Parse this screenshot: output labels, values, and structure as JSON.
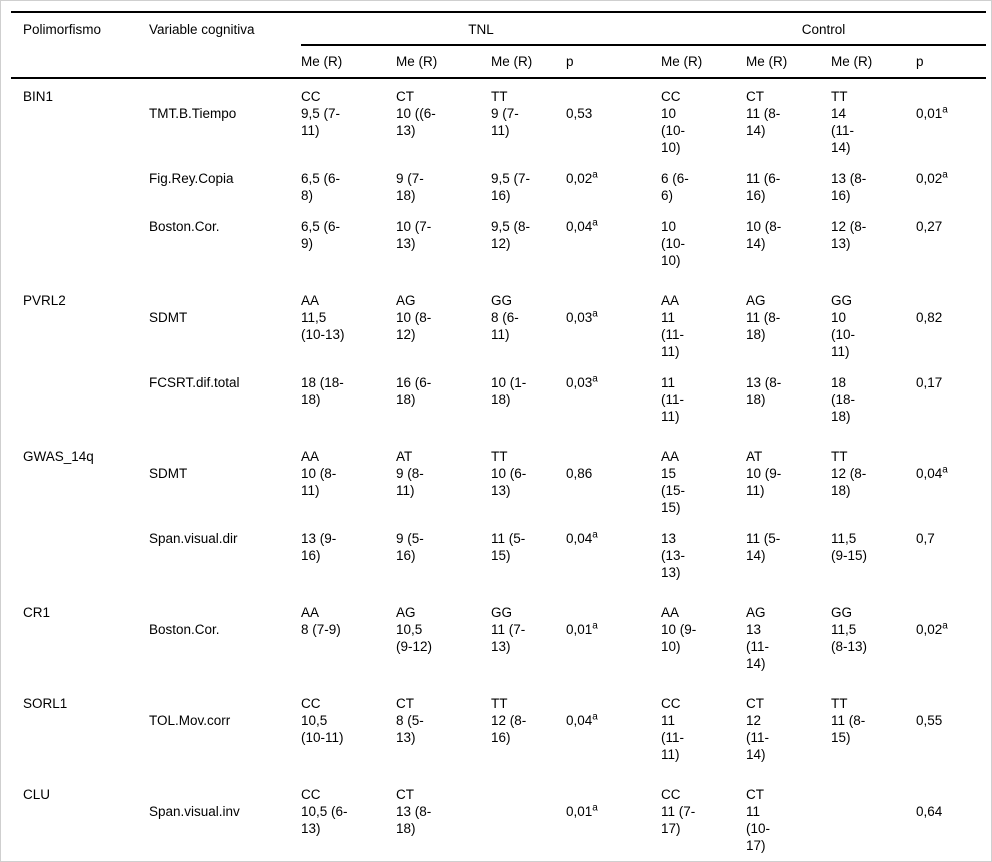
{
  "header": {
    "col_polimorfismo": "Polimorfismo",
    "col_variable": "Variable cognitiva",
    "group_tnl": "TNL",
    "group_control": "Control",
    "sub_me": "Me (R)",
    "sub_p": "p"
  },
  "sections": [
    {
      "gene": "BIN1",
      "genotypes_tnl": [
        "CC",
        "CT",
        "TT"
      ],
      "genotypes_control": [
        "CC",
        "CT",
        "TT"
      ],
      "rows": [
        {
          "variable": "TMT.B.Tiempo",
          "tnl": [
            "9,5 (7-\n11)",
            "10 ((6-\n13)",
            "9 (7-\n11)"
          ],
          "tnl_p": "0,53",
          "tnl_p_sup": "",
          "control": [
            "10\n(10-\n10)",
            "11 (8-\n14)",
            "14\n(11-\n14)"
          ],
          "control_p": "0,01",
          "control_p_sup": "a"
        },
        {
          "variable": "Fig.Rey.Copia",
          "tnl": [
            "6,5 (6-\n8)",
            "9 (7-\n18)",
            "9,5 (7-\n16)"
          ],
          "tnl_p": "0,02",
          "tnl_p_sup": "a",
          "control": [
            "6 (6-\n6)",
            "11 (6-\n16)",
            "13 (8-\n16)"
          ],
          "control_p": "0,02",
          "control_p_sup": "a"
        },
        {
          "variable": "Boston.Cor.",
          "tnl": [
            "6,5 (6-\n9)",
            "10 (7-\n13)",
            "9,5 (8-\n12)"
          ],
          "tnl_p": "0,04",
          "tnl_p_sup": "a",
          "control": [
            "10\n(10-\n10)",
            "10 (8-\n14)",
            "12 (8-\n13)"
          ],
          "control_p": "0,27",
          "control_p_sup": ""
        }
      ]
    },
    {
      "gene": "PVRL2",
      "genotypes_tnl": [
        "AA",
        "AG",
        "GG"
      ],
      "genotypes_control": [
        "AA",
        "AG",
        "GG"
      ],
      "rows": [
        {
          "variable": "SDMT",
          "tnl": [
            "11,5\n(10-13)",
            "10 (8-\n12)",
            "8 (6-\n11)"
          ],
          "tnl_p": "0,03",
          "tnl_p_sup": "a",
          "control": [
            "11\n(11-\n11)",
            "11 (8-\n18)",
            "10\n(10-\n11)"
          ],
          "control_p": "0,82",
          "control_p_sup": ""
        },
        {
          "variable": "FCSRT.dif.total",
          "tnl": [
            "18 (18-\n18)",
            "16 (6-\n18)",
            "10 (1-\n18)"
          ],
          "tnl_p": "0,03",
          "tnl_p_sup": "a",
          "control": [
            "11\n(11-\n11)",
            "13 (8-\n18)",
            "18\n(18-\n18)"
          ],
          "control_p": "0,17",
          "control_p_sup": ""
        }
      ]
    },
    {
      "gene": "GWAS_14q",
      "genotypes_tnl": [
        "AA",
        "AT",
        "TT"
      ],
      "genotypes_control": [
        "AA",
        "AT",
        "TT"
      ],
      "rows": [
        {
          "variable": "SDMT",
          "tnl": [
            "10 (8-\n11)",
            "9 (8-\n11)",
            "10 (6-\n13)"
          ],
          "tnl_p": "0,86",
          "tnl_p_sup": "",
          "control": [
            "15\n(15-\n15)",
            "10 (9-\n11)",
            "12 (8-\n18)"
          ],
          "control_p": "0,04",
          "control_p_sup": "a"
        },
        {
          "variable": "Span.visual.dir",
          "tnl": [
            "13 (9-\n16)",
            "9 (5-\n16)",
            "11 (5-\n15)"
          ],
          "tnl_p": "0,04",
          "tnl_p_sup": "a",
          "control": [
            "13\n(13-\n13)",
            "11 (5-\n14)",
            "11,5\n(9-15)"
          ],
          "control_p": "0,7",
          "control_p_sup": ""
        }
      ]
    },
    {
      "gene": "CR1",
      "genotypes_tnl": [
        "AA",
        "AG",
        "GG"
      ],
      "genotypes_control": [
        "AA",
        "AG",
        "GG"
      ],
      "rows": [
        {
          "variable": "Boston.Cor.",
          "tnl": [
            "8 (7-9)",
            "10,5\n(9-12)",
            "11 (7-\n13)"
          ],
          "tnl_p": "0,01",
          "tnl_p_sup": "a",
          "control": [
            "10 (9-\n10)",
            "13\n(11-\n14)",
            "11,5\n(8-13)"
          ],
          "control_p": "0,02",
          "control_p_sup": "a"
        }
      ]
    },
    {
      "gene": "SORL1",
      "genotypes_tnl": [
        "CC",
        "CT",
        "TT"
      ],
      "genotypes_control": [
        "CC",
        "CT",
        "TT"
      ],
      "rows": [
        {
          "variable": "TOL.Mov.corr",
          "tnl": [
            "10,5\n(10-11)",
            "8 (5-\n13)",
            "12 (8-\n16)"
          ],
          "tnl_p": "0,04",
          "tnl_p_sup": "a",
          "control": [
            "11\n(11-\n11)",
            "12\n(11-\n14)",
            "11 (8-\n15)"
          ],
          "control_p": "0,55",
          "control_p_sup": ""
        }
      ]
    },
    {
      "gene": "CLU",
      "genotypes_tnl": [
        "CC",
        "CT",
        ""
      ],
      "genotypes_control": [
        "CC",
        "CT",
        ""
      ],
      "rows": [
        {
          "variable": "Span.visual.inv",
          "tnl": [
            "10,5 (6-\n13)",
            "13 (8-\n18)",
            ""
          ],
          "tnl_p": "0,01",
          "tnl_p_sup": "a",
          "control": [
            "11 (7-\n17)",
            "11\n(10-\n17)",
            ""
          ],
          "control_p": "0,64",
          "control_p_sup": ""
        }
      ]
    }
  ]
}
